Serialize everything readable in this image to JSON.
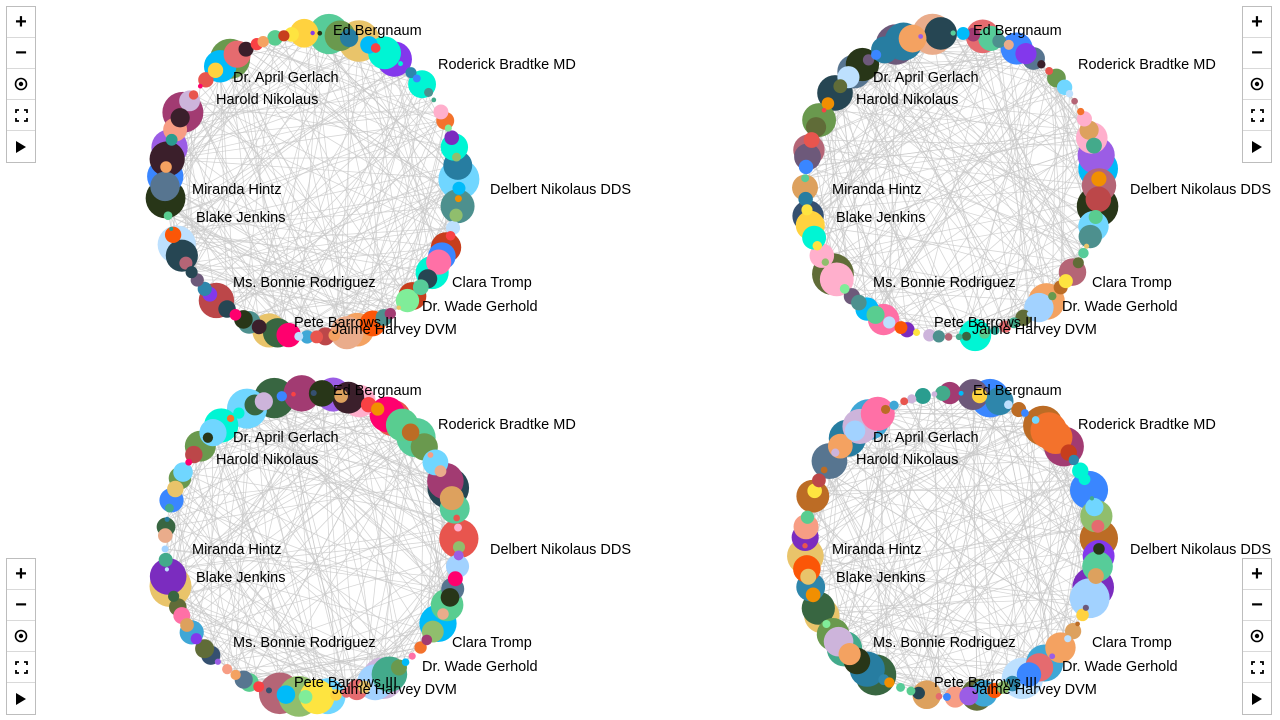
{
  "toolbar": {
    "zoom_in": "+",
    "zoom_out": "−",
    "center_icon": "target-icon",
    "fit_icon": "fullscreen-icon",
    "play_icon": "play-icon"
  },
  "labels": [
    "Ed Bergnaum",
    "Roderick Bradtke MD",
    "Dr. April Gerlach",
    "Harold Nikolaus",
    "Delbert Nikolaus DDS",
    "Miranda Hintz",
    "Blake Jenkins",
    "Clara Tromp",
    "Ms. Bonnie Rodriguez",
    "Dr. Wade Gerhold",
    "Pete Barrows III",
    "Jaime Harvey DVM"
  ],
  "colors": {
    "edge": "#c8c8c8",
    "palette": [
      "#e8554e",
      "#3fa7d6",
      "#59cd90",
      "#f79d84",
      "#7b2cbf",
      "#ffd23f",
      "#2e86ab",
      "#a23b72",
      "#f18f01",
      "#c73e1d",
      "#3b1f2b",
      "#6a994e",
      "#bc4749",
      "#386641",
      "#ff70a6",
      "#70d6ff",
      "#9b5de5",
      "#00bbf9",
      "#00f5d4",
      "#fee440",
      "#8338ec",
      "#ff006e",
      "#3a86ff",
      "#fb5607",
      "#6d597a",
      "#b56576",
      "#e56b6f",
      "#eaac8b",
      "#355070",
      "#2a9d8f",
      "#e9c46a",
      "#264653",
      "#f4a261",
      "#90be6d",
      "#43aa8b",
      "#577590",
      "#f94144",
      "#f3722c",
      "#277da1",
      "#4d908e",
      "#dda15e",
      "#606c38",
      "#283618",
      "#bc6c25",
      "#cdb4db",
      "#a2d2ff",
      "#bde0fe",
      "#ffafcc",
      "#80ed99",
      "#57cc99"
    ]
  }
}
